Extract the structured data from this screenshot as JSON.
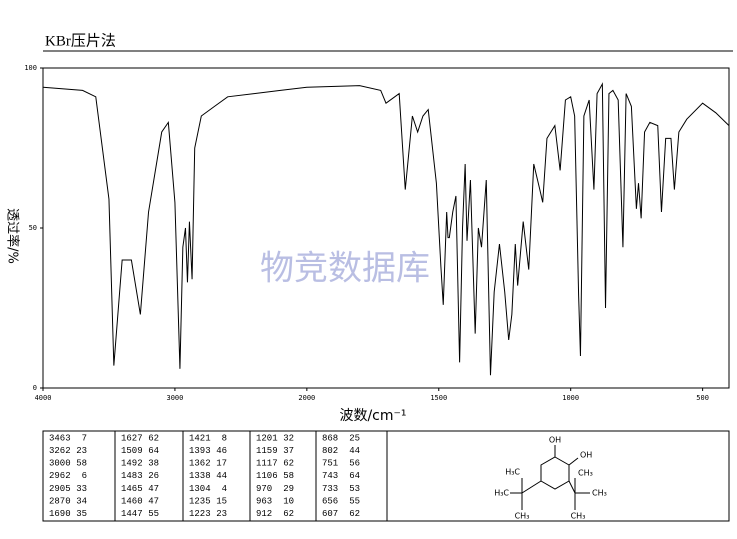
{
  "chart_data": {
    "type": "line",
    "title": "KBr压片法",
    "xlabel": "波数/cm⁻¹",
    "ylabel": "透过率/%",
    "watermark": "物竞数据库",
    "xlim": [
      4000,
      400
    ],
    "x_break": 2000,
    "x_break_scale": 2,
    "xticks": [
      4000,
      3000,
      2000,
      1500,
      1000,
      500
    ],
    "ylim": [
      0,
      100
    ],
    "yticks": [
      0,
      50,
      100
    ],
    "x": [
      4000,
      3700,
      3600,
      3500,
      3463,
      3400,
      3330,
      3262,
      3200,
      3100,
      3050,
      3000,
      2962,
      2940,
      2920,
      2905,
      2890,
      2870,
      2850,
      2800,
      2700,
      2600,
      2400,
      2200,
      2000,
      1800,
      1720,
      1700,
      1650,
      1627,
      1600,
      1580,
      1560,
      1540,
      1509,
      1492,
      1483,
      1470,
      1465,
      1460,
      1447,
      1435,
      1421,
      1410,
      1400,
      1393,
      1380,
      1362,
      1350,
      1338,
      1320,
      1304,
      1290,
      1270,
      1250,
      1235,
      1223,
      1210,
      1201,
      1180,
      1159,
      1140,
      1117,
      1106,
      1090,
      1060,
      1040,
      1020,
      1000,
      985,
      970,
      963,
      950,
      930,
      912,
      900,
      880,
      868,
      855,
      840,
      820,
      802,
      790,
      770,
      751,
      743,
      733,
      720,
      700,
      670,
      656,
      640,
      620,
      607,
      590,
      560,
      500,
      450,
      400
    ],
    "series": [
      {
        "name": "transmittance",
        "color": "#000000",
        "values": [
          94,
          93,
          91,
          59,
          7,
          40,
          40,
          23,
          55,
          80,
          83,
          58,
          6,
          44,
          50,
          33,
          52,
          34,
          75,
          85,
          88,
          91,
          92,
          93,
          94,
          94.5,
          93,
          89,
          92,
          62,
          85,
          80,
          85,
          87,
          64,
          38,
          26,
          55,
          47,
          47,
          55,
          60,
          8,
          50,
          70,
          46,
          65,
          17,
          50,
          44,
          65,
          4,
          30,
          45,
          30,
          15,
          23,
          45,
          32,
          52,
          37,
          70,
          62,
          58,
          78,
          82,
          68,
          90,
          91,
          85,
          29,
          10,
          85,
          90,
          62,
          92,
          95,
          25,
          92,
          93,
          90,
          44,
          92,
          88,
          56,
          64,
          53,
          80,
          83,
          82,
          55,
          78,
          78,
          62,
          80,
          84,
          89,
          86,
          82
        ]
      }
    ]
  },
  "peak_table": [
    [
      [
        3463,
        7
      ],
      [
        3262,
        23
      ],
      [
        3000,
        58
      ],
      [
        2962,
        6
      ],
      [
        2905,
        33
      ],
      [
        2870,
        34
      ],
      [
        1690,
        35
      ]
    ],
    [
      [
        1627,
        62
      ],
      [
        1509,
        64
      ],
      [
        1492,
        38
      ],
      [
        1483,
        26
      ],
      [
        1465,
        47
      ],
      [
        1460,
        47
      ],
      [
        1447,
        55
      ]
    ],
    [
      [
        1421,
        8
      ],
      [
        1393,
        46
      ],
      [
        1362,
        17
      ],
      [
        1338,
        44
      ],
      [
        1304,
        4
      ],
      [
        1235,
        15
      ],
      [
        1223,
        23
      ]
    ],
    [
      [
        1201,
        32
      ],
      [
        1159,
        37
      ],
      [
        1117,
        62
      ],
      [
        1106,
        58
      ],
      [
        970,
        29
      ],
      [
        963,
        10
      ],
      [
        912,
        62
      ]
    ],
    [
      [
        868,
        25
      ],
      [
        802,
        44
      ],
      [
        751,
        56
      ],
      [
        743,
        64
      ],
      [
        733,
        53
      ],
      [
        656,
        55
      ],
      [
        607,
        62
      ]
    ]
  ],
  "structure": {
    "labels": [
      "OH",
      "OH",
      "H₃C",
      "CH₃",
      "H₃C",
      "CH₃",
      "CH₃",
      "CH₃"
    ]
  }
}
